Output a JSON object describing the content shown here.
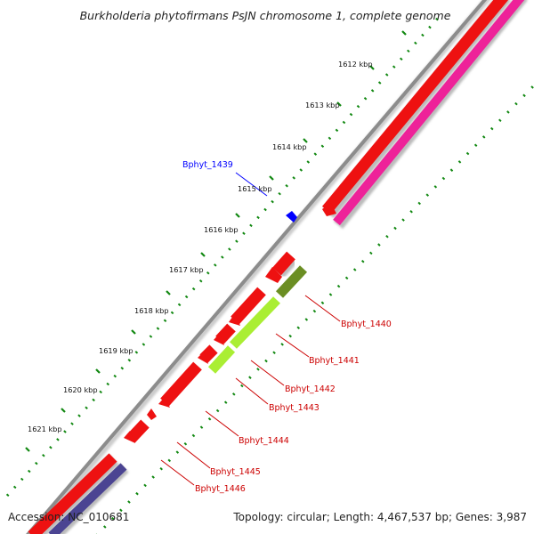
{
  "title": "Burkholderia phytofirmans PsJN chromosome 1, complete genome",
  "footer": {
    "accession": "Accession: NC_010681",
    "summary": "Topology: circular; Length: 4,467,537 bp; Genes: 3,987"
  },
  "scale_labels": [
    "1612 kbp",
    "1613 kbp",
    "1614 kbp",
    "1615 kbp",
    "1616 kbp",
    "1617 kbp",
    "1618 kbp",
    "1619 kbp",
    "1620 kbp",
    "1621 kbp"
  ],
  "genes": [
    {
      "id": "Bphyt_1439",
      "color": "#0000ff"
    },
    {
      "id": "Bphyt_1440",
      "color": "#cc0000"
    },
    {
      "id": "Bphyt_1441",
      "color": "#cc0000"
    },
    {
      "id": "Bphyt_1442",
      "color": "#cc0000"
    },
    {
      "id": "Bphyt_1443",
      "color": "#cc0000"
    },
    {
      "id": "Bphyt_1444",
      "color": "#cc0000"
    },
    {
      "id": "Bphyt_1445",
      "color": "#cc0000"
    },
    {
      "id": "Bphyt_1446",
      "color": "#cc0000"
    }
  ],
  "colors": {
    "backbone": "#8c8c8c",
    "cds_red": "#ee1111",
    "cds_magenta": "#ee2299",
    "cog_olive": "#6b8e23",
    "cog_lime": "#aaee33",
    "cog_purple": "#4b4492",
    "dots": "#118811"
  }
}
